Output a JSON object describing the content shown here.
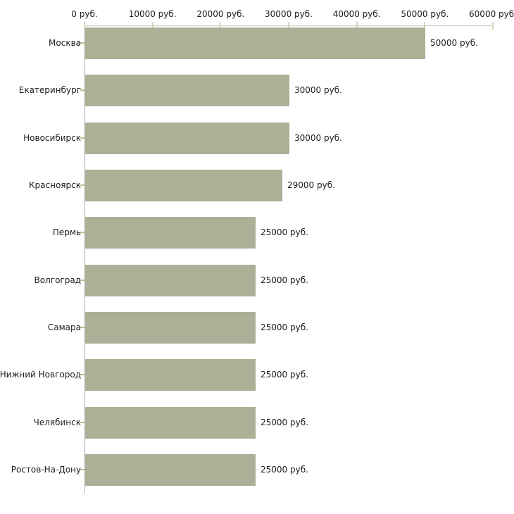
{
  "chart_data": {
    "type": "bar",
    "orientation": "horizontal",
    "title": "",
    "categories": [
      "Москва",
      "Екатеринбург",
      "Новосибирск",
      "Красноярск",
      "Пермь",
      "Волгоград",
      "Самара",
      "Нижний Новгород",
      "Челябинск",
      "Ростов-На-Дону"
    ],
    "values": [
      50000,
      30000,
      30000,
      29000,
      25000,
      25000,
      25000,
      25000,
      25000,
      25000
    ],
    "value_labels": [
      "50000 руб.",
      "30000 руб.",
      "30000 руб.",
      "29000 руб.",
      "25000 руб.",
      "25000 руб.",
      "25000 руб.",
      "25000 руб.",
      "25000 руб.",
      "25000 руб."
    ],
    "x_ticks": [
      0,
      10000,
      20000,
      30000,
      40000,
      50000,
      60000
    ],
    "x_tick_labels": [
      "0 руб.",
      "10000 руб.",
      "20000 руб.",
      "30000 руб.",
      "40000 руб.",
      "50000 руб.",
      "60000 руб."
    ],
    "xlim": [
      0,
      60000
    ],
    "unit": "руб.",
    "grid": false,
    "legend": false,
    "colors": {
      "bar": "#abb196",
      "x_axis_line": "#c9c9c9",
      "y_axis_line": "#adadad",
      "x_tick_mark": "#d5d8ba",
      "y_tick_mark": "#b9bd92",
      "label_text": "#1c1c1c",
      "background": "#ffffff"
    }
  }
}
